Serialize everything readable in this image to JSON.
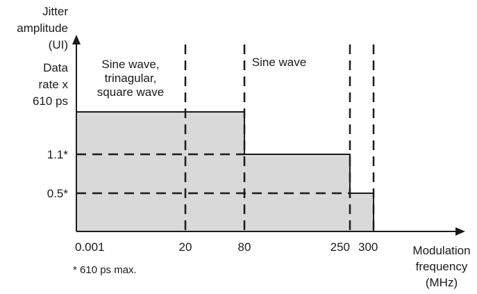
{
  "chart_data": {
    "type": "area",
    "ylabel_lines": [
      "Jitter",
      "amplitude",
      "(UI)"
    ],
    "xlabel_lines": [
      "Modulation",
      "frequency",
      "(MHz)"
    ],
    "x_ticks": [
      "0.001",
      "20",
      "80",
      "250",
      "300"
    ],
    "y_ticks": [
      {
        "lines": [
          "Data",
          "rate x",
          "610 ps"
        ],
        "level": 3
      },
      {
        "lines": [
          "1.1*"
        ],
        "level": 2
      },
      {
        "lines": [
          "0.5*"
        ],
        "level": 1
      }
    ],
    "steps": [
      {
        "from": "0.001",
        "to": "80",
        "level": 3
      },
      {
        "from": "80",
        "to": "250",
        "level": 2
      },
      {
        "from": "250",
        "to": "300",
        "level": 1
      }
    ],
    "region_labels": [
      {
        "lines": [
          "Sine wave,",
          "trinagular,",
          "square wave"
        ],
        "range": [
          "0.001",
          "20"
        ]
      },
      {
        "lines": [
          "Sine wave"
        ],
        "range": [
          "20",
          "300"
        ]
      }
    ],
    "dashed_verticals": [
      "20",
      "80",
      "250",
      "300"
    ],
    "dashed_horizontals": [
      2,
      1
    ],
    "footnote": "* 610 ps max.",
    "colors": {
      "fill": "#d9d9d9",
      "line": "#1a1a1a"
    }
  }
}
